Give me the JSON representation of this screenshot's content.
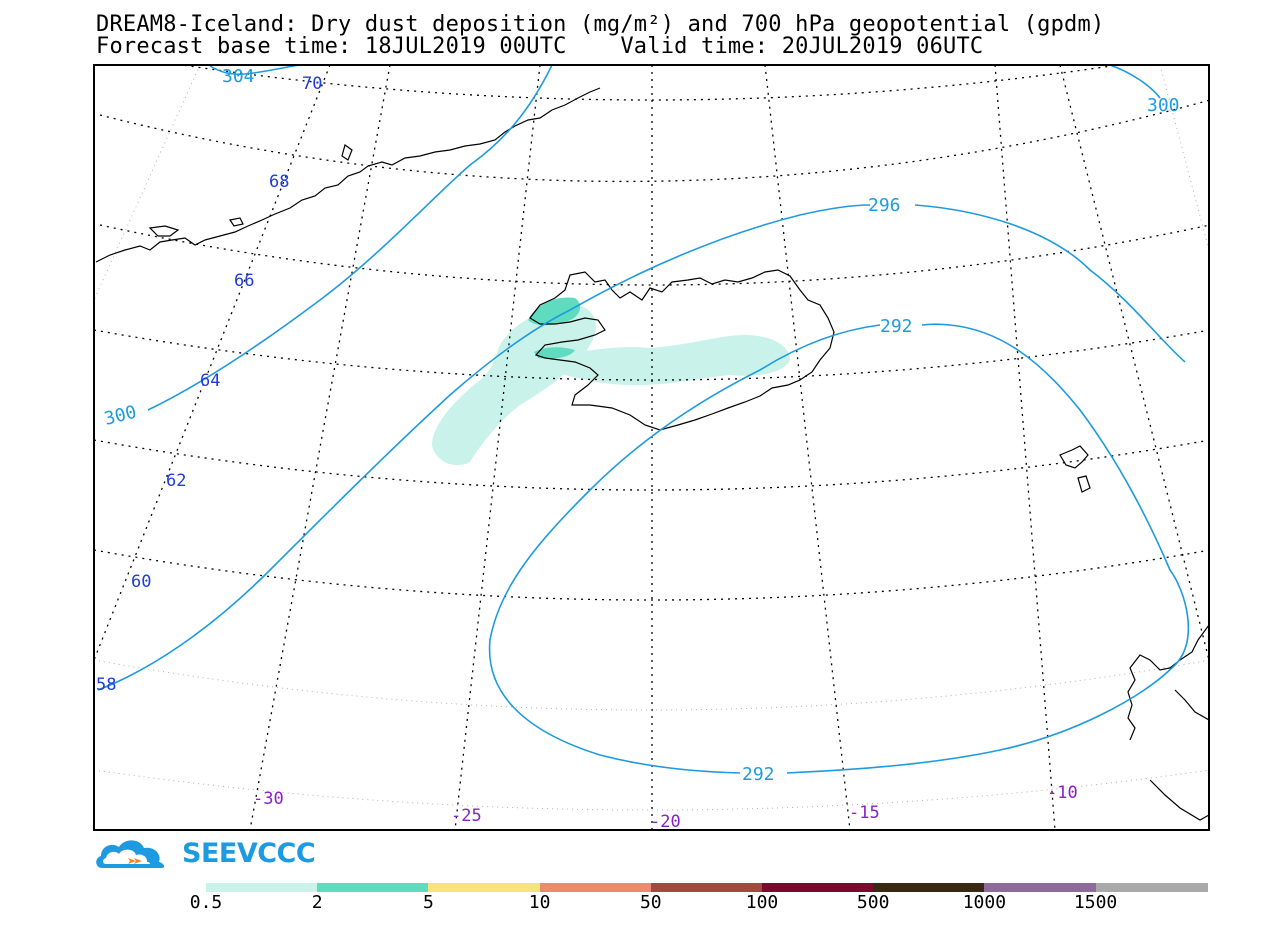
{
  "title": {
    "line1": "DREAM8-Iceland: Dry dust deposition (mg/m²) and 700 hPa geopotential (gpdm)",
    "line2": "Forecast base time: 18JUL2019 00UTC    Valid time: 20JUL2019 06UTC"
  },
  "geopotential_contours": [
    {
      "value": "304",
      "label": "304"
    },
    {
      "value": "300",
      "label": "300"
    },
    {
      "value": "296",
      "label": "296"
    },
    {
      "value": "292",
      "label": "292"
    }
  ],
  "latitude_labels": [
    "70",
    "68",
    "66",
    "64",
    "62",
    "60",
    "58"
  ],
  "longitude_labels": [
    "-30",
    "-25",
    "-20",
    "-15",
    "-10"
  ],
  "logo": {
    "text": "SEEVCCC"
  },
  "colorbar": {
    "segments": [
      {
        "color": "#c8f2ea"
      },
      {
        "color": "#5fdcbf"
      },
      {
        "color": "#f7e27c"
      },
      {
        "color": "#ec8c68"
      },
      {
        "color": "#a34a40"
      },
      {
        "color": "#7a0a2e"
      },
      {
        "color": "#3a2714"
      },
      {
        "color": "#8c6a9a"
      },
      {
        "color": "#a9a9a9"
      }
    ],
    "labels": [
      "0.5",
      "2",
      "5",
      "10",
      "50",
      "100",
      "500",
      "1000",
      "1500"
    ]
  },
  "colors": {
    "contour": "#1e9be0",
    "lat_label": "#1e3cdc",
    "lon_label": "#8a20c8",
    "dust_light": "#c8f2ea",
    "dust_mid": "#5fdcbf"
  }
}
